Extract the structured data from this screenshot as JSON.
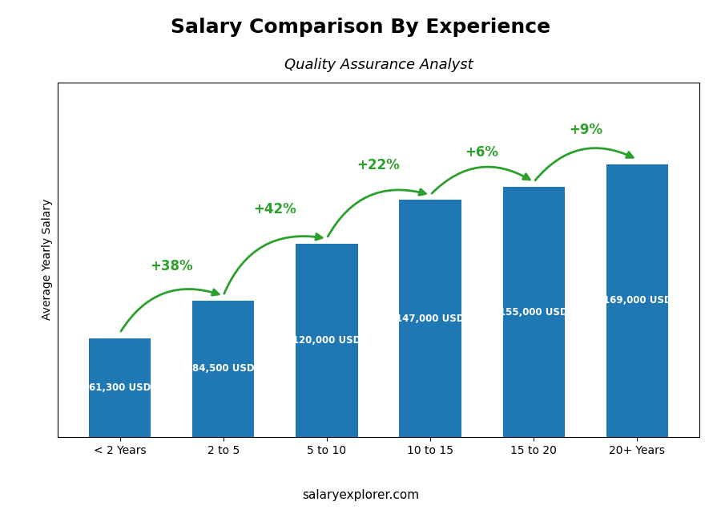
{
  "chart_data": {
    "type": "bar",
    "title": "Salary Comparison By Experience",
    "subtitle": "Quality Assurance Analyst",
    "y_label": "Average Yearly Salary",
    "categories": [
      "< 2 Years",
      "2 to 5",
      "5 to 10",
      "10 to 15",
      "15 to 20",
      "20+ Years"
    ],
    "values": [
      61300,
      84500,
      120000,
      147000,
      155000,
      169000
    ],
    "value_labels": [
      "61,300 USD",
      "84,500 USD",
      "120,000 USD",
      "147,000 USD",
      "155,000 USD",
      "169,000 USD"
    ],
    "data_labels": true,
    "annotations": [
      "+38%",
      "+42%",
      "+22%",
      "+6%",
      "+9%"
    ],
    "source": "salaryexplorer.com",
    "ylim": [
      0,
      220000
    ],
    "yticks": [],
    "tick_labels": "x",
    "grid": false
  }
}
